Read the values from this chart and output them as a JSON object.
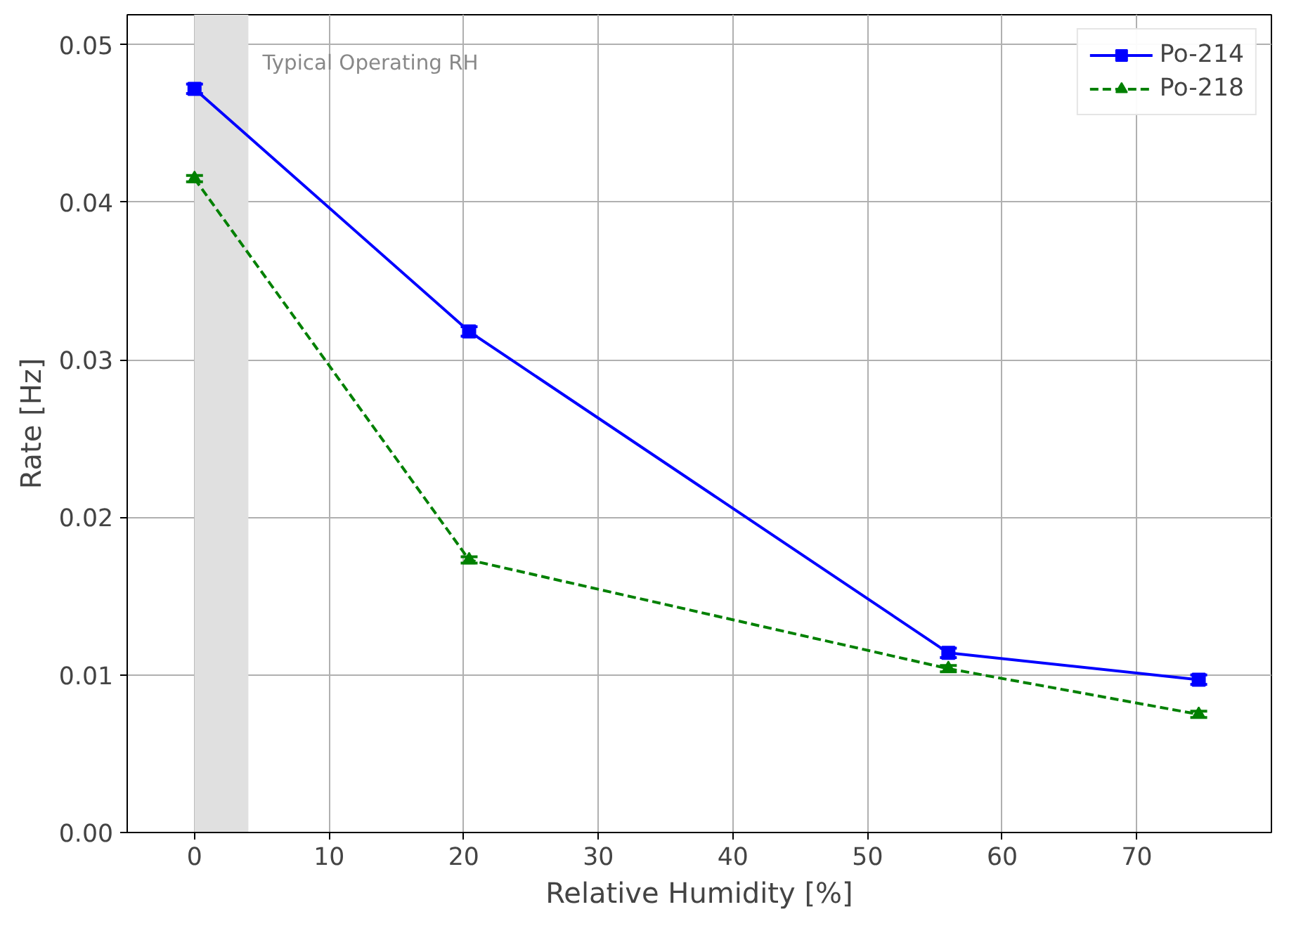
{
  "chart_data": {
    "type": "line",
    "xlabel": "Relative Humidity [%]",
    "ylabel": "Rate [Hz]",
    "x": [
      0,
      20.4,
      56,
      74.6
    ],
    "series": [
      {
        "name": "Po-214",
        "color": "#0000ff",
        "values": [
          0.0472,
          0.0318,
          0.0114,
          0.0097
        ],
        "errors": [
          0.0003,
          0.0003,
          0.0003,
          0.0003
        ],
        "marker": "square",
        "line_style": "solid"
      },
      {
        "name": "Po-218",
        "color": "#008000",
        "values": [
          0.0415,
          0.0173,
          0.0104,
          0.0075
        ],
        "errors": [
          0.0002,
          0.0002,
          0.0002,
          0.0002
        ],
        "marker": "triangle",
        "line_style": "dashed"
      }
    ],
    "xlim": [
      -5,
      80
    ],
    "ylim": [
      0,
      0.0519
    ],
    "xticks": [
      0,
      10,
      20,
      30,
      40,
      50,
      60,
      70
    ],
    "yticks": [
      {
        "value": 0,
        "label": "0.00"
      },
      {
        "value": 0.01,
        "label": "0.01"
      },
      {
        "value": 0.02,
        "label": "0.02"
      },
      {
        "value": 0.03,
        "label": "0.03"
      },
      {
        "value": 0.04,
        "label": "0.04"
      },
      {
        "value": 0.05,
        "label": "0.05"
      }
    ],
    "bands": [
      {
        "axis": "x",
        "from": 0,
        "to": 4,
        "label": "Typical Operating RH",
        "color": "#e0e0e0"
      }
    ],
    "grid": true,
    "legend": "top right"
  }
}
